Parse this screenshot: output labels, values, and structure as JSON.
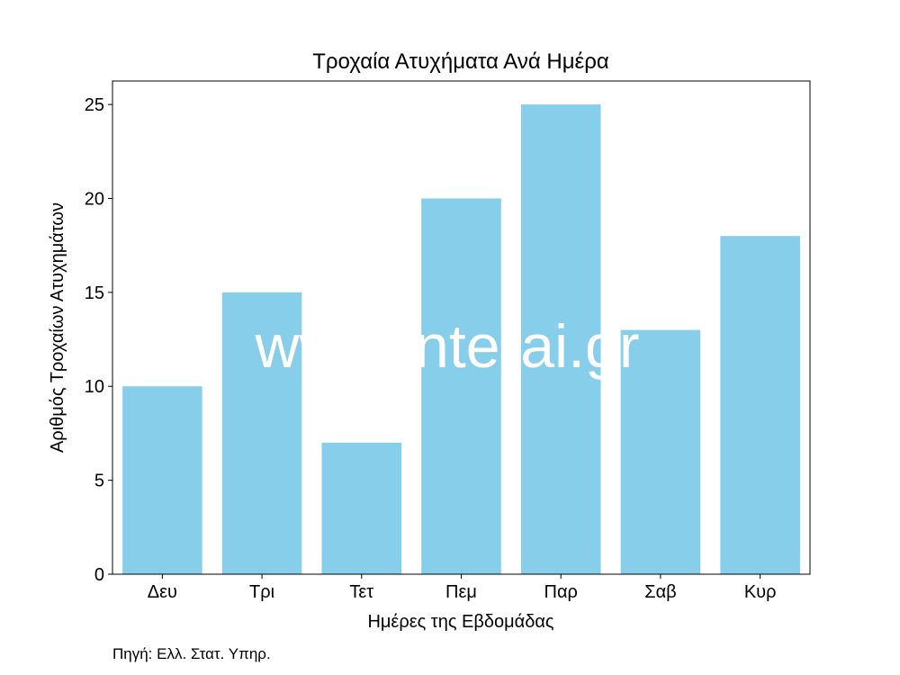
{
  "chart_data": {
    "type": "bar",
    "title": "Τροχαία Ατυχήματα Ανά Ημέρα",
    "xlabel": "Ημέρες της Εβδομάδας",
    "ylabel": "Αριθμός Τροχαίων Ατυχημάτων",
    "categories": [
      "Δευ",
      "Τρι",
      "Τετ",
      "Πεμ",
      "Παρ",
      "Σαβ",
      "Κυρ"
    ],
    "values": [
      10,
      15,
      7,
      20,
      25,
      13,
      18
    ],
    "ylim": [
      0,
      26.25
    ],
    "yticks": [
      0,
      5,
      10,
      15,
      20,
      25
    ],
    "bar_color": "#87ceeb",
    "grid": false,
    "legend": "none"
  },
  "source_note": "Πηγή: Ελλ. Στατ. Υπηρ.",
  "watermark": "www.interai.gr"
}
